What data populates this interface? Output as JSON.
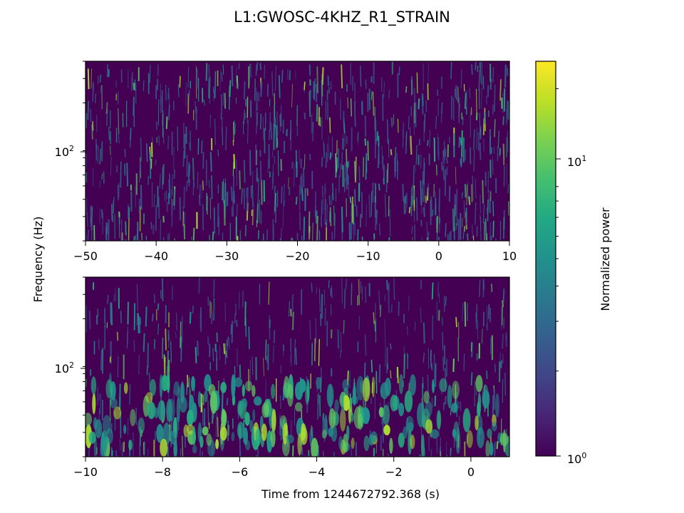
{
  "chart_data": {
    "type": "heatmap",
    "title": "L1:GWOSC-4KHZ_R1_STRAIN",
    "ylabel": "Frequency (Hz)",
    "xlabel": "Time from 1244672792.368 (s)",
    "colorbar": {
      "label": "Normalized power",
      "scale": "log",
      "range": [
        1,
        25
      ],
      "colormap": "viridis",
      "ticks": [
        {
          "value": 1,
          "base": "10",
          "exp": "0"
        },
        {
          "value": 10,
          "base": "10",
          "exp": "1"
        }
      ]
    },
    "panels": [
      {
        "name": "top",
        "xlim": [
          -50,
          10
        ],
        "xticks": [
          -50,
          -40,
          -30,
          -20,
          -10,
          0,
          10
        ],
        "xtick_labels": [
          "−50",
          "−40",
          "−30",
          "−20",
          "−10",
          "0",
          "10"
        ],
        "yscale": "log",
        "ylim": [
          20,
          400
        ],
        "ytick": {
          "value": 100,
          "base": "10",
          "exp": "2"
        }
      },
      {
        "name": "bottom",
        "xlim": [
          -10,
          1
        ],
        "xticks": [
          -10,
          -8,
          -6,
          -4,
          -2,
          0
        ],
        "xtick_labels": [
          "−10",
          "−8",
          "−6",
          "−4",
          "−2",
          "0"
        ],
        "yscale": "log",
        "ylim": [
          20,
          400
        ],
        "ytick": {
          "value": 100,
          "base": "10",
          "exp": "2"
        }
      }
    ]
  }
}
